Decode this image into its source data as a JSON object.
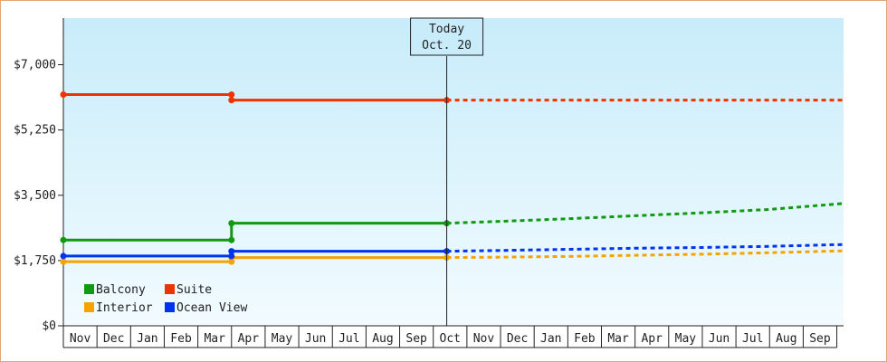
{
  "chart_data": {
    "type": "line",
    "x": [
      "Nov",
      "Dec",
      "Jan",
      "Feb",
      "Mar",
      "Apr",
      "May",
      "Jun",
      "Jul",
      "Aug",
      "Sep",
      "Oct",
      "Nov",
      "Dec",
      "Jan",
      "Feb",
      "Mar",
      "Apr",
      "May",
      "Jun",
      "Jul",
      "Aug",
      "Sep"
    ],
    "y_ticks": [
      "$0",
      "$1,750",
      "$3,500",
      "$5,250",
      "$7,000"
    ],
    "y_tick_values": [
      0,
      1750,
      3500,
      5250,
      7000
    ],
    "ylim": [
      0,
      8250
    ],
    "today": {
      "line1": "Today",
      "line2": "Oct. 20"
    },
    "series": [
      {
        "name": "Balcony",
        "color": "#119911",
        "actual": [
          [
            0,
            2300
          ],
          [
            5,
            2300
          ],
          [
            5,
            2750
          ],
          [
            11.4,
            2750
          ]
        ],
        "forecast": [
          [
            11.4,
            2750
          ],
          [
            13,
            2800
          ],
          [
            15,
            2870
          ],
          [
            17,
            2950
          ],
          [
            19,
            3030
          ],
          [
            21,
            3120
          ],
          [
            23.2,
            3280
          ]
        ]
      },
      {
        "name": "Suite",
        "color": "#ee3300",
        "actual": [
          [
            0,
            6200
          ],
          [
            5,
            6200
          ],
          [
            5,
            6050
          ],
          [
            11.4,
            6050
          ]
        ],
        "forecast": [
          [
            11.4,
            6050
          ],
          [
            23.2,
            6050
          ]
        ]
      },
      {
        "name": "Interior",
        "color": "#f5a300",
        "actual": [
          [
            0,
            1720
          ],
          [
            5,
            1720
          ],
          [
            5,
            1830
          ],
          [
            11.4,
            1830
          ]
        ],
        "forecast": [
          [
            11.4,
            1830
          ],
          [
            13,
            1840
          ],
          [
            15,
            1860
          ],
          [
            17,
            1890
          ],
          [
            19,
            1920
          ],
          [
            21,
            1960
          ],
          [
            23.2,
            2010
          ]
        ]
      },
      {
        "name": "Ocean View",
        "color": "#0033ee",
        "actual": [
          [
            0,
            1870
          ],
          [
            5,
            1870
          ],
          [
            5,
            2000
          ],
          [
            11.4,
            2000
          ]
        ],
        "forecast": [
          [
            11.4,
            2000
          ],
          [
            13,
            2020
          ],
          [
            15,
            2050
          ],
          [
            17,
            2080
          ],
          [
            19,
            2100
          ],
          [
            21,
            2130
          ],
          [
            23.2,
            2180
          ]
        ]
      }
    ],
    "legend": [
      "Balcony",
      "Suite",
      "Interior",
      "Ocean View"
    ],
    "legend_position": "bottom-left"
  }
}
